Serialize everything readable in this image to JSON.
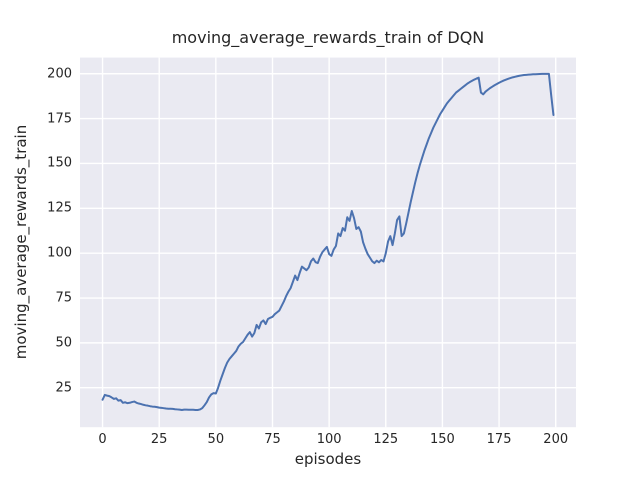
{
  "figure": {
    "title": "moving_average_rewards_train of DQN",
    "xlabel": "episodes",
    "ylabel": "moving_average_rewards_train"
  },
  "colors": {
    "figure_bg": "#ffffff",
    "plot_bg": "#eaeaf2",
    "grid": "#ffffff",
    "text": "#262626",
    "line": "#4c72b0"
  },
  "chart_data": {
    "type": "line",
    "title": "moving_average_rewards_train of DQN",
    "xlabel": "episodes",
    "ylabel": "moving_average_rewards_train",
    "x_ticks": [
      0,
      25,
      50,
      75,
      100,
      125,
      150,
      175,
      200
    ],
    "y_ticks": [
      25,
      50,
      75,
      100,
      125,
      150,
      175,
      200
    ],
    "xlim": [
      -9.95,
      208.95
    ],
    "ylim": [
      3,
      209
    ],
    "grid": true,
    "legend": false,
    "series": [
      {
        "name": "moving_average_rewards_train",
        "color": "#4c72b0",
        "points": [
          [
            0,
            18.3
          ],
          [
            1,
            21.0
          ],
          [
            2,
            20.6
          ],
          [
            3,
            20.3
          ],
          [
            4,
            19.6
          ],
          [
            5,
            18.8
          ],
          [
            6,
            19.1
          ],
          [
            7,
            17.8
          ],
          [
            8,
            18.1
          ],
          [
            9,
            16.6
          ],
          [
            10,
            16.9
          ],
          [
            11,
            16.4
          ],
          [
            12,
            16.6
          ],
          [
            13,
            17.0
          ],
          [
            14,
            17.3
          ],
          [
            15,
            16.6
          ],
          [
            16,
            16.2
          ],
          [
            17,
            15.9
          ],
          [
            18,
            15.5
          ],
          [
            19,
            15.2
          ],
          [
            20,
            15.0
          ],
          [
            21,
            14.7
          ],
          [
            22,
            14.5
          ],
          [
            23,
            14.4
          ],
          [
            24,
            14.2
          ],
          [
            25,
            13.9
          ],
          [
            26,
            13.8
          ],
          [
            27,
            13.6
          ],
          [
            28,
            13.4
          ],
          [
            29,
            13.3
          ],
          [
            30,
            13.3
          ],
          [
            31,
            13.2
          ],
          [
            32,
            13.0
          ],
          [
            33,
            12.9
          ],
          [
            34,
            12.8
          ],
          [
            35,
            12.6
          ],
          [
            36,
            12.8
          ],
          [
            37,
            12.8
          ],
          [
            38,
            12.7
          ],
          [
            39,
            12.7
          ],
          [
            40,
            12.7
          ],
          [
            41,
            12.6
          ],
          [
            42,
            12.6
          ],
          [
            43,
            12.9
          ],
          [
            44,
            13.6
          ],
          [
            45,
            15.2
          ],
          [
            46,
            17.0
          ],
          [
            47,
            19.6
          ],
          [
            48,
            21.3
          ],
          [
            49,
            22.0
          ],
          [
            50,
            21.8
          ],
          [
            51,
            25.0
          ],
          [
            52,
            29.0
          ],
          [
            53,
            32.5
          ],
          [
            54,
            36.0
          ],
          [
            55,
            39.0
          ],
          [
            56,
            41.0
          ],
          [
            57,
            42.5
          ],
          [
            58,
            44.0
          ],
          [
            59,
            45.5
          ],
          [
            60,
            48.0
          ],
          [
            61,
            49.5
          ],
          [
            62,
            50.5
          ],
          [
            63,
            52.5
          ],
          [
            64,
            54.5
          ],
          [
            65,
            56.0
          ],
          [
            66,
            53.5
          ],
          [
            67,
            55.5
          ],
          [
            68,
            60.0
          ],
          [
            69,
            58.0
          ],
          [
            70,
            61.5
          ],
          [
            71,
            62.5
          ],
          [
            72,
            60.5
          ],
          [
            73,
            63.3
          ],
          [
            74,
            64.0
          ],
          [
            75,
            64.5
          ],
          [
            76,
            66.0
          ],
          [
            77,
            67.0
          ],
          [
            78,
            68.0
          ],
          [
            79,
            70.5
          ],
          [
            80,
            73.0
          ],
          [
            81,
            76.0
          ],
          [
            82,
            78.5
          ],
          [
            83,
            80.5
          ],
          [
            84,
            84.0
          ],
          [
            85,
            87.5
          ],
          [
            86,
            85.0
          ],
          [
            87,
            89.0
          ],
          [
            88,
            92.5
          ],
          [
            89,
            91.5
          ],
          [
            90,
            90.5
          ],
          [
            91,
            92.0
          ],
          [
            92,
            95.5
          ],
          [
            93,
            97.0
          ],
          [
            94,
            95.0
          ],
          [
            95,
            94.5
          ],
          [
            96,
            98.0
          ],
          [
            97,
            100.5
          ],
          [
            98,
            102.0
          ],
          [
            99,
            103.5
          ],
          [
            100,
            99.5
          ],
          [
            101,
            98.5
          ],
          [
            102,
            102.0
          ],
          [
            103,
            104.0
          ],
          [
            104,
            111.0
          ],
          [
            105,
            109.5
          ],
          [
            106,
            114.0
          ],
          [
            107,
            112.5
          ],
          [
            108,
            120.0
          ],
          [
            109,
            118.0
          ],
          [
            110,
            123.5
          ],
          [
            111,
            119.5
          ],
          [
            112,
            113.5
          ],
          [
            113,
            114.5
          ],
          [
            114,
            112.0
          ],
          [
            115,
            106.0
          ],
          [
            116,
            102.5
          ],
          [
            117,
            99.5
          ],
          [
            118,
            97.5
          ],
          [
            119,
            95.5
          ],
          [
            120,
            94.5
          ],
          [
            121,
            95.8
          ],
          [
            122,
            94.9
          ],
          [
            123,
            96.2
          ],
          [
            124,
            95.4
          ],
          [
            125,
            100.0
          ],
          [
            126,
            106.5
          ],
          [
            127,
            109.5
          ],
          [
            128,
            104.5
          ],
          [
            129,
            111.0
          ],
          [
            130,
            118.5
          ],
          [
            131,
            120.5
          ],
          [
            132,
            109.5
          ],
          [
            133,
            111.0
          ],
          [
            134,
            116.5
          ],
          [
            135,
            122.5
          ],
          [
            136,
            128.5
          ],
          [
            137,
            134.0
          ],
          [
            138,
            139.5
          ],
          [
            139,
            144.5
          ],
          [
            140,
            149.0
          ],
          [
            141,
            153.0
          ],
          [
            142,
            157.0
          ],
          [
            143,
            160.5
          ],
          [
            144,
            164.0
          ],
          [
            145,
            167.0
          ],
          [
            146,
            170.0
          ],
          [
            147,
            172.5
          ],
          [
            148,
            175.0
          ],
          [
            149,
            177.5
          ],
          [
            150,
            179.5
          ],
          [
            151,
            181.5
          ],
          [
            152,
            183.5
          ],
          [
            153,
            185.0
          ],
          [
            154,
            186.5
          ],
          [
            155,
            188.0
          ],
          [
            156,
            189.5
          ],
          [
            157,
            190.5
          ],
          [
            158,
            191.5
          ],
          [
            159,
            192.5
          ],
          [
            160,
            193.5
          ],
          [
            161,
            194.5
          ],
          [
            162,
            195.3
          ],
          [
            163,
            196.0
          ],
          [
            164,
            196.7
          ],
          [
            165,
            197.3
          ],
          [
            166,
            197.8
          ],
          [
            167,
            189.5
          ],
          [
            168,
            188.5
          ],
          [
            169,
            190.0
          ],
          [
            170,
            191.0
          ],
          [
            171,
            192.0
          ],
          [
            172,
            192.8
          ],
          [
            173,
            193.6
          ],
          [
            174,
            194.3
          ],
          [
            175,
            195.0
          ],
          [
            176,
            195.6
          ],
          [
            177,
            196.2
          ],
          [
            178,
            196.7
          ],
          [
            179,
            197.2
          ],
          [
            180,
            197.6
          ],
          [
            181,
            198.0
          ],
          [
            182,
            198.3
          ],
          [
            183,
            198.6
          ],
          [
            184,
            198.9
          ],
          [
            185,
            199.1
          ],
          [
            186,
            199.3
          ],
          [
            187,
            199.4
          ],
          [
            188,
            199.5
          ],
          [
            189,
            199.6
          ],
          [
            190,
            199.7
          ],
          [
            191,
            199.75
          ],
          [
            192,
            199.8
          ],
          [
            193,
            199.85
          ],
          [
            194,
            199.9
          ],
          [
            195,
            199.9
          ],
          [
            196,
            199.9
          ],
          [
            197,
            199.9
          ],
          [
            198,
            188.0
          ],
          [
            199,
            177.0
          ]
        ]
      }
    ]
  }
}
